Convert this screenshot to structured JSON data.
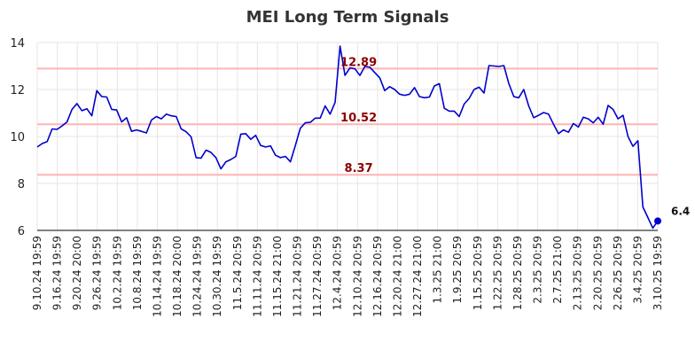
{
  "chart_data": {
    "type": "line",
    "title": "MEI Long Term Signals",
    "xlabel": "",
    "ylabel": "",
    "ylim": [
      6,
      14
    ],
    "yticks": [
      6,
      8,
      10,
      12,
      14
    ],
    "grid": true,
    "colors": {
      "line": "#0000cc",
      "level_line": "#ffb3b3",
      "level_text": "#8b0000",
      "grid": "#e6e6e6",
      "text": "#333333"
    },
    "x_tick_labels": [
      "9.10.24 19:59",
      "9.16.24 19:59",
      "9.20.24 20:00",
      "9.26.24 19:59",
      "10.2.24 19:59",
      "10.8.24 19:59",
      "10.14.24 19:59",
      "10.18.24 20:00",
      "10.24.24 19:59",
      "10.30.24 19:59",
      "11.5.24 20:59",
      "11.11.24 20:59",
      "11.15.24 21:00",
      "11.21.24 20:59",
      "11.27.24 20:59",
      "12.4.24 20:59",
      "12.10.24 20:59",
      "12.16.24 20:59",
      "12.20.24 21:00",
      "12.27.24 21:00",
      "1.3.25 21:00",
      "1.9.25 20:59",
      "1.15.25 20:59",
      "1.22.25 20:59",
      "1.28.25 20:59",
      "2.3.25 20:59",
      "2.7.25 21:00",
      "2.13.25 20:59",
      "2.20.25 20:59",
      "2.26.25 20:59",
      "3.4.25 20:59",
      "3.10.25 19:59"
    ],
    "levels": [
      {
        "value": 12.89,
        "label": "12.89"
      },
      {
        "value": 10.52,
        "label": "10.52"
      },
      {
        "value": 8.37,
        "label": "8.37"
      }
    ],
    "last_value": {
      "value": 6.4,
      "label": "6.4"
    },
    "series": [
      {
        "values": [
          9.55,
          9.7,
          9.78,
          10.32,
          10.3,
          10.45,
          10.62,
          11.15,
          11.4,
          11.1,
          11.18,
          10.88,
          11.95,
          11.7,
          11.68,
          11.15,
          11.13,
          10.62,
          10.8,
          10.22,
          10.28,
          10.22,
          10.15,
          10.7,
          10.85,
          10.75,
          10.95,
          10.88,
          10.85,
          10.32,
          10.2,
          9.98,
          9.1,
          9.08,
          9.42,
          9.32,
          9.1,
          8.62,
          8.92,
          9.02,
          9.15,
          10.1,
          10.12,
          9.88,
          10.05,
          9.62,
          9.55,
          9.6,
          9.2,
          9.1,
          9.15,
          8.92,
          9.62,
          10.35,
          10.58,
          10.6,
          10.78,
          10.78,
          11.3,
          10.95,
          11.45,
          13.85,
          12.6,
          12.92,
          12.88,
          12.6,
          12.98,
          12.95,
          12.72,
          12.5,
          11.95,
          12.12,
          12.0,
          11.8,
          11.75,
          11.8,
          12.08,
          11.7,
          11.65,
          11.68,
          12.15,
          12.25,
          11.2,
          11.08,
          11.08,
          10.85,
          11.38,
          11.62,
          12.0,
          12.1,
          11.85,
          13.02,
          13.0,
          12.98,
          13.02,
          12.25,
          11.7,
          11.65,
          12.0,
          11.3,
          10.8,
          10.9,
          11.02,
          10.95,
          10.52,
          10.12,
          10.28,
          10.18,
          10.55,
          10.4,
          10.82,
          10.75,
          10.58,
          10.82,
          10.52,
          11.32,
          11.15,
          10.75,
          10.9,
          10.0,
          9.58,
          9.82,
          7.0,
          6.55,
          6.1,
          6.4
        ]
      }
    ]
  }
}
